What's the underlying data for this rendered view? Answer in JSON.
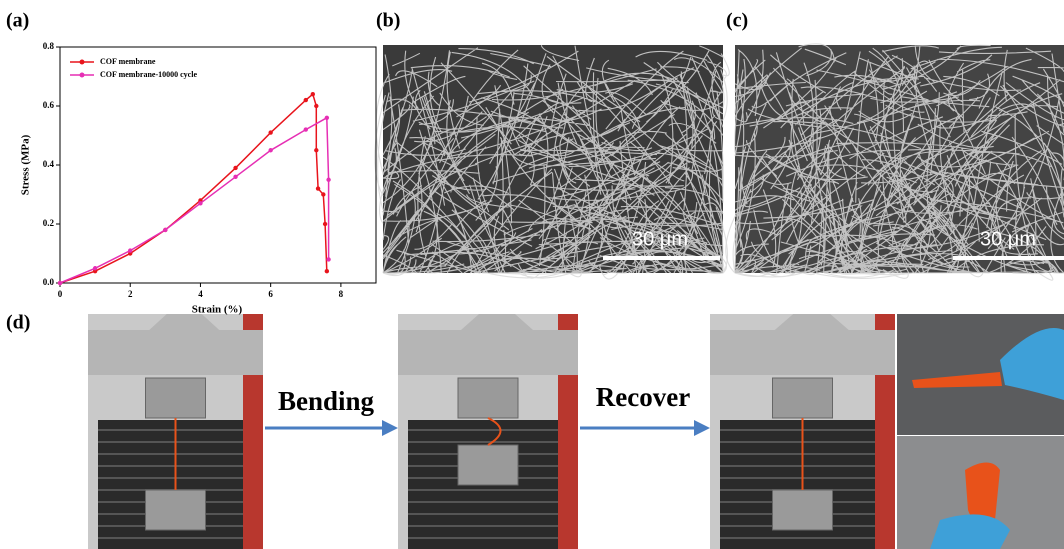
{
  "panels": {
    "a": "(a)",
    "b": "(b)",
    "c": "(c)",
    "d": "(d)",
    "b_scale": "30 μm",
    "c_scale": "30 μm",
    "d_steps": [
      "Bending",
      "Recover"
    ]
  },
  "chart_data": {
    "type": "line",
    "x_label": "Strain (%)",
    "y_label": "Stress (MPa)",
    "xlim": [
      0,
      9
    ],
    "xticks": [
      0,
      2,
      4,
      6,
      8
    ],
    "ylim": [
      0,
      0.8
    ],
    "yticks": [
      {
        "value": 0,
        "label": "0.0"
      },
      0.2,
      0.4,
      0.6,
      0.8
    ],
    "legend": "upper left",
    "series": [
      {
        "name": "COF membrane",
        "color": "#e8141c",
        "x": [
          0,
          1,
          2,
          3,
          4,
          5,
          6,
          7,
          7.2,
          7.3,
          7.3,
          7.35,
          7.5,
          7.55,
          7.6
        ],
        "values": [
          0,
          0.04,
          0.1,
          0.18,
          0.28,
          0.39,
          0.51,
          0.62,
          0.64,
          0.6,
          0.45,
          0.32,
          0.3,
          0.2,
          0.04
        ]
      },
      {
        "name": "COF membrane-10000 cycle",
        "color": "#e62fb4",
        "x": [
          0,
          1,
          2,
          3,
          4,
          5,
          6,
          7,
          7.6,
          7.65,
          7.65
        ],
        "values": [
          0,
          0.05,
          0.11,
          0.18,
          0.27,
          0.36,
          0.45,
          0.52,
          0.56,
          0.35,
          0.08
        ]
      }
    ]
  }
}
